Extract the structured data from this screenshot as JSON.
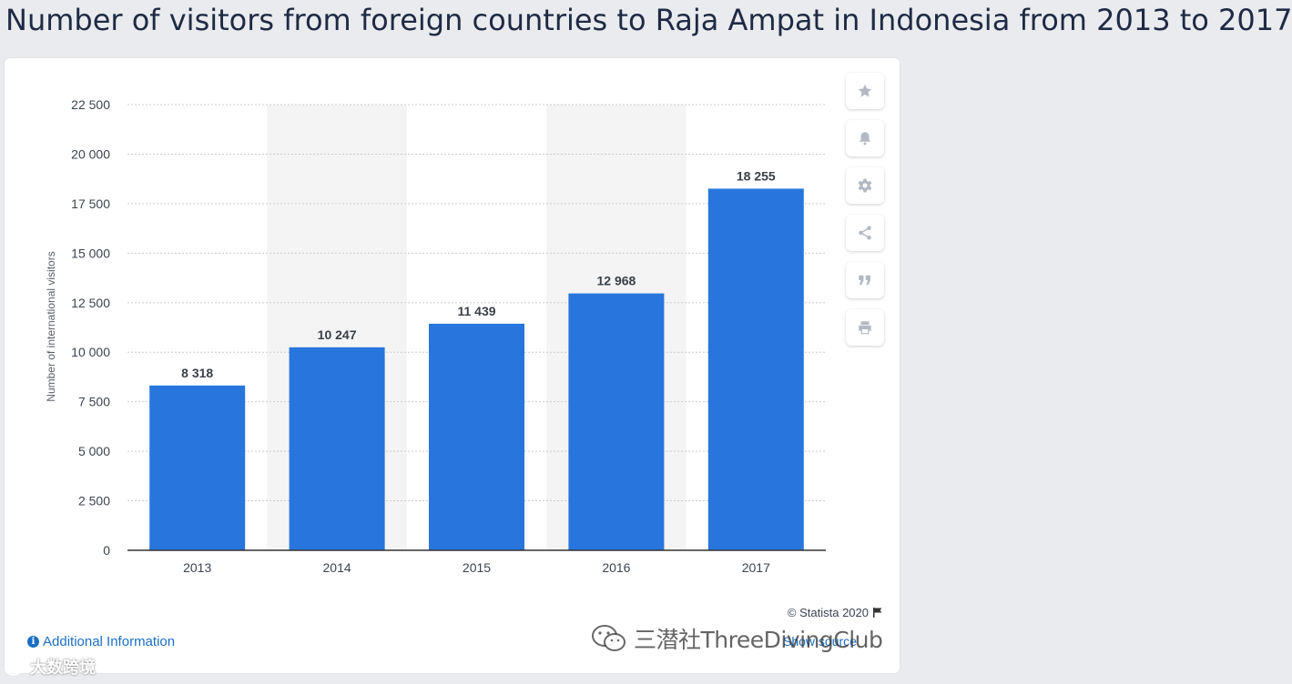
{
  "page": {
    "title": "Number of visitors from foreign countries to Raja Ampat in Indonesia from 2013 to 2017"
  },
  "chart_data": {
    "type": "bar",
    "categories": [
      "2013",
      "2014",
      "2015",
      "2016",
      "2017"
    ],
    "values": [
      8318,
      10247,
      11439,
      12968,
      18255
    ],
    "value_labels": [
      "8 318",
      "10 247",
      "11 439",
      "12 968",
      "18 255"
    ],
    "title": "",
    "xlabel": "",
    "ylabel": "Number of international visitors",
    "ylim": [
      0,
      22500
    ],
    "yticks": [
      0,
      2500,
      5000,
      7500,
      10000,
      12500,
      15000,
      17500,
      20000,
      22500
    ],
    "ytick_labels": [
      "0",
      "2 500",
      "5 000",
      "7 500",
      "10 000",
      "12 500",
      "15 000",
      "17 500",
      "20 000",
      "22 500"
    ],
    "grid": true,
    "bar_color": "#2876dd",
    "band_color": "#f4f4f4"
  },
  "toolbar": {
    "items": [
      {
        "name": "favorite",
        "icon": "star-icon"
      },
      {
        "name": "notify",
        "icon": "bell-icon"
      },
      {
        "name": "settings",
        "icon": "gear-icon"
      },
      {
        "name": "share",
        "icon": "share-icon"
      },
      {
        "name": "cite",
        "icon": "quote-icon"
      },
      {
        "name": "print",
        "icon": "print-icon"
      }
    ]
  },
  "footer": {
    "credit": "© Statista 2020",
    "additional_info": "Additional Information",
    "show_source": "Show source"
  },
  "watermarks": {
    "right": "三潜社ThreeDivingClub",
    "left": "大数跨境"
  },
  "colors": {
    "title": "#1f2a44",
    "link": "#1a6fc4",
    "icon": "#b3b9c3"
  }
}
